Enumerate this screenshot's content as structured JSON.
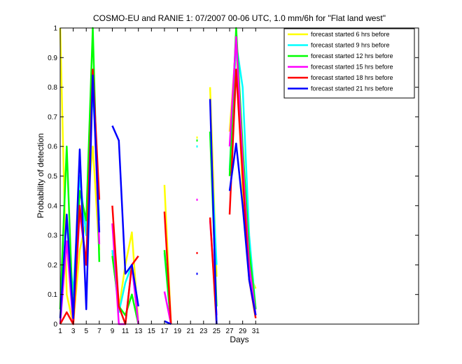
{
  "chart_data": {
    "type": "line",
    "title": "COSMO-EU and RANIE 1: 07/2007 00-06 UTC, 1.0 mm/6h for \"Flat land west\"",
    "xlabel": "Days",
    "ylabel": "Probability of detection",
    "xlim": [
      1,
      56
    ],
    "ylim": [
      0,
      1
    ],
    "xticks": [
      1,
      3,
      5,
      7,
      9,
      11,
      13,
      15,
      17,
      19,
      21,
      23,
      25,
      27,
      29,
      31
    ],
    "yticks": [
      0,
      0.1,
      0.2,
      0.3,
      0.4,
      0.5,
      0.6,
      0.7,
      0.8,
      0.9,
      1
    ],
    "ytick_labels": [
      "0",
      "0.1",
      "0.2",
      "0.3",
      "0.4",
      "0.5",
      "0.6",
      "0.7",
      "0.8",
      "0.9",
      "1"
    ],
    "legend_position": "top-right",
    "series": [
      {
        "name": "forecast started 6 hrs before",
        "color": "#ffff00",
        "x": [
          1,
          2,
          3,
          4,
          5,
          6,
          7,
          null,
          9,
          10,
          11,
          12,
          13,
          null,
          17,
          18,
          null,
          22,
          null,
          24,
          25,
          null,
          27,
          28,
          29,
          30,
          31
        ],
        "y": [
          1.0,
          0.1,
          0.0,
          0.25,
          0.35,
          0.6,
          0.25,
          null,
          0.24,
          0.05,
          0.2,
          0.31,
          0.0,
          null,
          0.47,
          0.0,
          null,
          0.63,
          null,
          0.8,
          0.16,
          null,
          0.65,
          0.95,
          0.45,
          0.17,
          0.12
        ]
      },
      {
        "name": "forecast started 9 hrs before",
        "color": "#00ffff",
        "x": [
          1,
          2,
          3,
          4,
          5,
          6,
          7,
          null,
          9,
          10,
          11,
          12,
          13,
          null,
          17,
          18,
          null,
          22,
          null,
          24,
          25,
          null,
          27,
          28,
          29,
          30,
          31
        ],
        "y": [
          0.05,
          0.35,
          0.1,
          0.5,
          0.3,
          0.8,
          0.35,
          null,
          0.25,
          0.04,
          0.14,
          0.2,
          0.0,
          null,
          0.24,
          0.0,
          null,
          0.6,
          null,
          0.65,
          0.2,
          null,
          0.52,
          0.95,
          0.8,
          0.3,
          0.05
        ]
      },
      {
        "name": "forecast started 12 hrs before",
        "color": "#00ff00",
        "x": [
          1,
          2,
          3,
          4,
          5,
          6,
          7,
          null,
          9,
          10,
          11,
          12,
          13,
          null,
          17,
          18,
          null,
          22,
          null,
          24,
          25,
          null,
          27,
          28,
          29,
          30,
          31
        ],
        "y": [
          0.05,
          0.6,
          0.0,
          0.45,
          0.35,
          1.0,
          0.21,
          null,
          0.23,
          0.06,
          0.03,
          0.1,
          0.0,
          null,
          0.25,
          0.0,
          null,
          0.62,
          null,
          0.65,
          0.06,
          null,
          0.5,
          1.0,
          0.6,
          0.25,
          0.05
        ]
      },
      {
        "name": "forecast started 15 hrs before",
        "color": "#ff00ff",
        "x": [
          1,
          2,
          3,
          4,
          5,
          6,
          7,
          null,
          9,
          10,
          11,
          12,
          13,
          null,
          17,
          18,
          null,
          22,
          null,
          24,
          25,
          null,
          27,
          28,
          29,
          30,
          31
        ],
        "y": [
          0.0,
          0.28,
          0.0,
          0.38,
          0.2,
          0.85,
          0.27,
          null,
          0.34,
          0.0,
          0.0,
          0.2,
          0.0,
          null,
          0.11,
          0.0,
          null,
          0.42,
          null,
          0.35,
          0.03,
          null,
          0.6,
          0.97,
          0.55,
          0.2,
          0.03
        ]
      },
      {
        "name": "forecast started 18 hrs before",
        "color": "#ff0000",
        "x": [
          1,
          2,
          3,
          4,
          5,
          6,
          7,
          null,
          9,
          10,
          11,
          12,
          13,
          null,
          17,
          18,
          null,
          22,
          null,
          24,
          25,
          null,
          27,
          28,
          29,
          30,
          31
        ],
        "y": [
          0.0,
          0.04,
          0.0,
          0.4,
          0.2,
          0.86,
          0.42,
          null,
          0.4,
          0.06,
          0.0,
          0.2,
          0.23,
          null,
          0.38,
          0.0,
          null,
          0.24,
          null,
          0.36,
          0.0,
          null,
          0.37,
          0.86,
          0.5,
          0.15,
          0.02
        ]
      },
      {
        "name": "forecast started 21 hrs before",
        "color": "#0000ff",
        "x": [
          1,
          2,
          3,
          4,
          5,
          6,
          7,
          null,
          9,
          10,
          11,
          12,
          13,
          null,
          17,
          18,
          null,
          22,
          null,
          24,
          25,
          null,
          27,
          28,
          29,
          30,
          31
        ],
        "y": [
          0.02,
          0.37,
          0.02,
          0.59,
          0.05,
          0.84,
          0.31,
          null,
          0.67,
          0.62,
          0.17,
          0.2,
          0.06,
          null,
          0.01,
          0.0,
          null,
          0.17,
          null,
          0.76,
          0.0,
          null,
          0.45,
          0.61,
          0.4,
          0.15,
          0.03
        ]
      }
    ]
  }
}
